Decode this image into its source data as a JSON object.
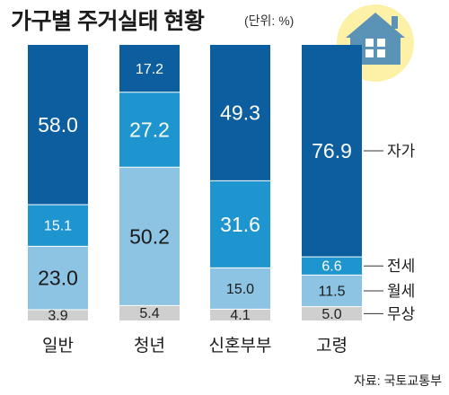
{
  "chart_data": {
    "type": "bar",
    "stacked": true,
    "title": "가구별 주거실태 현황",
    "unit": "(단위: %)",
    "categories": [
      "일반",
      "청년",
      "신혼부부",
      "고령"
    ],
    "series": [
      {
        "name": "무상",
        "values": [
          3.9,
          5.4,
          4.1,
          5.0
        ],
        "color": "#cfcfcf",
        "label_color": "#222222"
      },
      {
        "name": "월세",
        "values": [
          23.0,
          50.2,
          15.0,
          11.5
        ],
        "color": "#8dc3e3",
        "label_color": "#1a1a1a"
      },
      {
        "name": "전세",
        "values": [
          15.1,
          27.2,
          31.6,
          6.6
        ],
        "color": "#1e95cf",
        "label_color": "#ffffff"
      },
      {
        "name": "자가",
        "values": [
          58.0,
          17.2,
          49.3,
          76.9
        ],
        "color": "#0c5e9e",
        "label_color": "#ffffff"
      }
    ],
    "ylim": [
      0,
      100
    ],
    "source": "자료: 국토교통부"
  },
  "house_icon": "house-icon",
  "colors": {
    "icon_circle": "#fdf1a8",
    "icon_house": "#5b93b7"
  }
}
